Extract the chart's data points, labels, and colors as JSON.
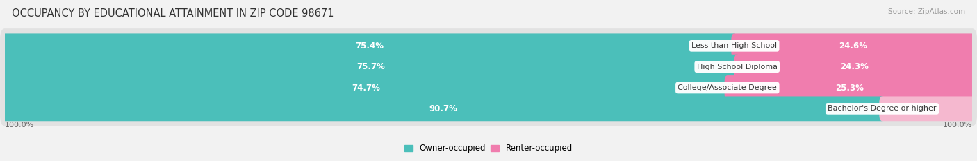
{
  "title": "OCCUPANCY BY EDUCATIONAL ATTAINMENT IN ZIP CODE 98671",
  "source": "Source: ZipAtlas.com",
  "categories": [
    "Less than High School",
    "High School Diploma",
    "College/Associate Degree",
    "Bachelor's Degree or higher"
  ],
  "owner_pct": [
    75.4,
    75.7,
    74.7,
    90.7
  ],
  "renter_pct": [
    24.6,
    24.3,
    25.3,
    9.3
  ],
  "owner_color": "#4BBFBA",
  "renter_color": "#F07DAE",
  "renter_color_light": "#F5B8CF",
  "bg_color": "#f2f2f2",
  "bar_bg_color": "#e2e2e2",
  "bar_height": 0.58,
  "title_fontsize": 10.5,
  "label_fontsize": 8.5,
  "axis_label_fontsize": 8,
  "legend_fontsize": 8.5,
  "x_left_label": "100.0%",
  "x_right_label": "100.0%"
}
